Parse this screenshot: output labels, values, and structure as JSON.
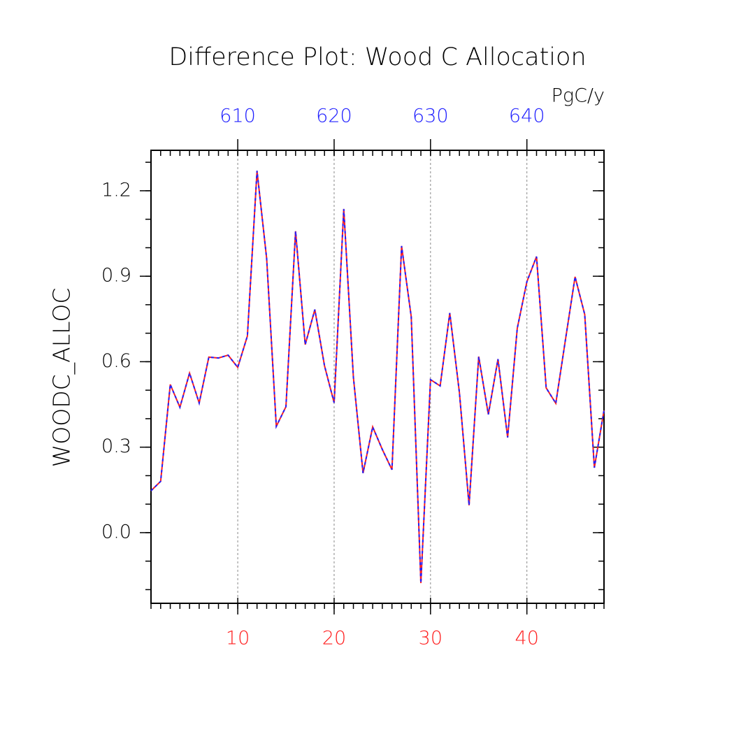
{
  "chart_data": {
    "type": "line",
    "title": "Difference Plot: Wood C Allocation",
    "ylabel": "WOODC_ALLOC",
    "x2label": "PgC/y",
    "x": [
      1,
      2,
      3,
      4,
      5,
      6,
      7,
      8,
      9,
      10,
      11,
      12,
      13,
      14,
      15,
      16,
      17,
      18,
      19,
      20,
      21,
      22,
      23,
      24,
      25,
      26,
      27,
      28,
      29,
      30,
      31,
      32,
      33,
      34,
      35,
      36,
      37,
      38,
      39,
      40,
      41,
      42,
      43,
      44,
      45,
      46,
      47,
      48
    ],
    "series": [
      {
        "color": "#ff2020",
        "dash": false,
        "values": [
          0.147,
          0.18,
          0.52,
          0.44,
          0.56,
          0.455,
          0.616,
          0.613,
          0.623,
          0.58,
          0.69,
          1.27,
          0.962,
          0.373,
          0.442,
          1.058,
          0.66,
          0.783,
          0.586,
          0.456,
          1.136,
          0.545,
          0.209,
          0.371,
          0.292,
          0.221,
          1.006,
          0.758,
          -0.177,
          0.537,
          0.515,
          0.771,
          0.491,
          0.096,
          0.618,
          0.415,
          0.609,
          0.334,
          0.717,
          0.881,
          0.969,
          0.508,
          0.454,
          0.677,
          0.898,
          0.766,
          0.228,
          0.429
        ]
      },
      {
        "color": "#2020ff",
        "dash": true,
        "values": [
          0.147,
          0.18,
          0.52,
          0.44,
          0.56,
          0.455,
          0.616,
          0.613,
          0.623,
          0.58,
          0.69,
          1.27,
          0.962,
          0.373,
          0.442,
          1.058,
          0.66,
          0.783,
          0.586,
          0.456,
          1.136,
          0.545,
          0.209,
          0.371,
          0.292,
          0.221,
          1.006,
          0.758,
          -0.177,
          0.537,
          0.515,
          0.771,
          0.491,
          0.096,
          0.618,
          0.415,
          0.609,
          0.334,
          0.717,
          0.881,
          0.969,
          0.508,
          0.454,
          0.677,
          0.898,
          0.766,
          0.228,
          0.429
        ]
      }
    ],
    "xlim": [
      1,
      48
    ],
    "xticks": [
      10,
      20,
      30,
      40
    ],
    "xtick_color": "#ff2020",
    "xminor_step": 1,
    "x2lim": [
      601,
      648
    ],
    "x2ticks": [
      610,
      620,
      630,
      640
    ],
    "x2tick_color": "#2020ff",
    "ylim": [
      -0.248,
      1.342
    ],
    "yticks": [
      {
        "value": 0,
        "label": "0.0"
      },
      0.3,
      0.6,
      0.9,
      1.2
    ],
    "yminor_step": 0.1,
    "grid": "x"
  }
}
